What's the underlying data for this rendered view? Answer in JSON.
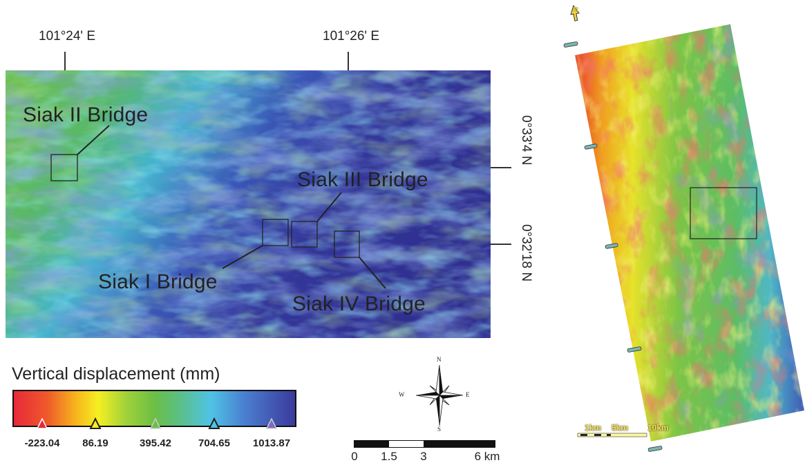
{
  "map": {
    "lon_labels": [
      "101°24' E",
      "101°26' E"
    ],
    "lat_labels": [
      "0°33'4 N",
      "0°32'18 N"
    ],
    "bridges": [
      "Siak II Bridge",
      "Siak III Bridge",
      "Siak I Bridge",
      "Siak IV Bridge"
    ]
  },
  "legend": {
    "title": "Vertical displacement (mm)",
    "values": [
      "-223.04",
      "86.19",
      "395.42",
      "704.65",
      "1013.87"
    ],
    "colors": [
      "#e8283a",
      "#f6ef22",
      "#6cbe45",
      "#4fc3e6",
      "#3b3a9c"
    ]
  },
  "compass": {
    "n": "N",
    "s": "S",
    "e": "E",
    "w": "W"
  },
  "scale_bar": {
    "labels": [
      "0",
      "1.5",
      "3",
      "6 km"
    ]
  },
  "overview": {
    "north_label": "N",
    "scale_labels": [
      "1km",
      "5km",
      "10km"
    ]
  }
}
